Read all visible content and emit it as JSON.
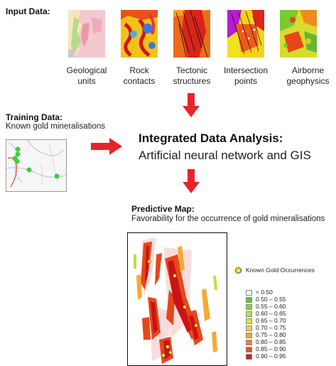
{
  "input": {
    "title": "Input Data:",
    "items": [
      {
        "label": "Geological units"
      },
      {
        "label": "Rock contacts"
      },
      {
        "label": "Tectonic structures"
      },
      {
        "label": "Intersection points"
      },
      {
        "label": "Airborne geophysics"
      }
    ]
  },
  "training": {
    "title": "Training Data:",
    "subtitle": "Known gold mineralisations"
  },
  "analysis": {
    "title": "Integrated Data Analysis:",
    "subtitle": "Artificial neural network and GIS"
  },
  "predictive": {
    "title": "Predictive Map:",
    "subtitle": "Favorability for the occurrence of gold mineralisations"
  },
  "legend": {
    "occurrence_label": "Known Gold Occurrences",
    "occurrence_color": "#f5e61a",
    "classes": [
      {
        "label": "< 0.50",
        "color": "#ffffff"
      },
      {
        "label": "0.50 – 0.55",
        "color": "#5cc832"
      },
      {
        "label": "0.55 – 0.60",
        "color": "#8cd23c"
      },
      {
        "label": "0.60 – 0.65",
        "color": "#bede3c"
      },
      {
        "label": "0.65 – 0.70",
        "color": "#dce63c"
      },
      {
        "label": "0.70 – 0.75",
        "color": "#f0d23c"
      },
      {
        "label": "0.75 – 0.80",
        "color": "#f5aa32"
      },
      {
        "label": "0.80 – 0.85",
        "color": "#f08228"
      },
      {
        "label": "0.85 – 0.90",
        "color": "#e65020"
      },
      {
        "label": "0.90 – 0.95",
        "color": "#d21e1e"
      }
    ]
  },
  "colors": {
    "arrow": "#e8232b"
  }
}
